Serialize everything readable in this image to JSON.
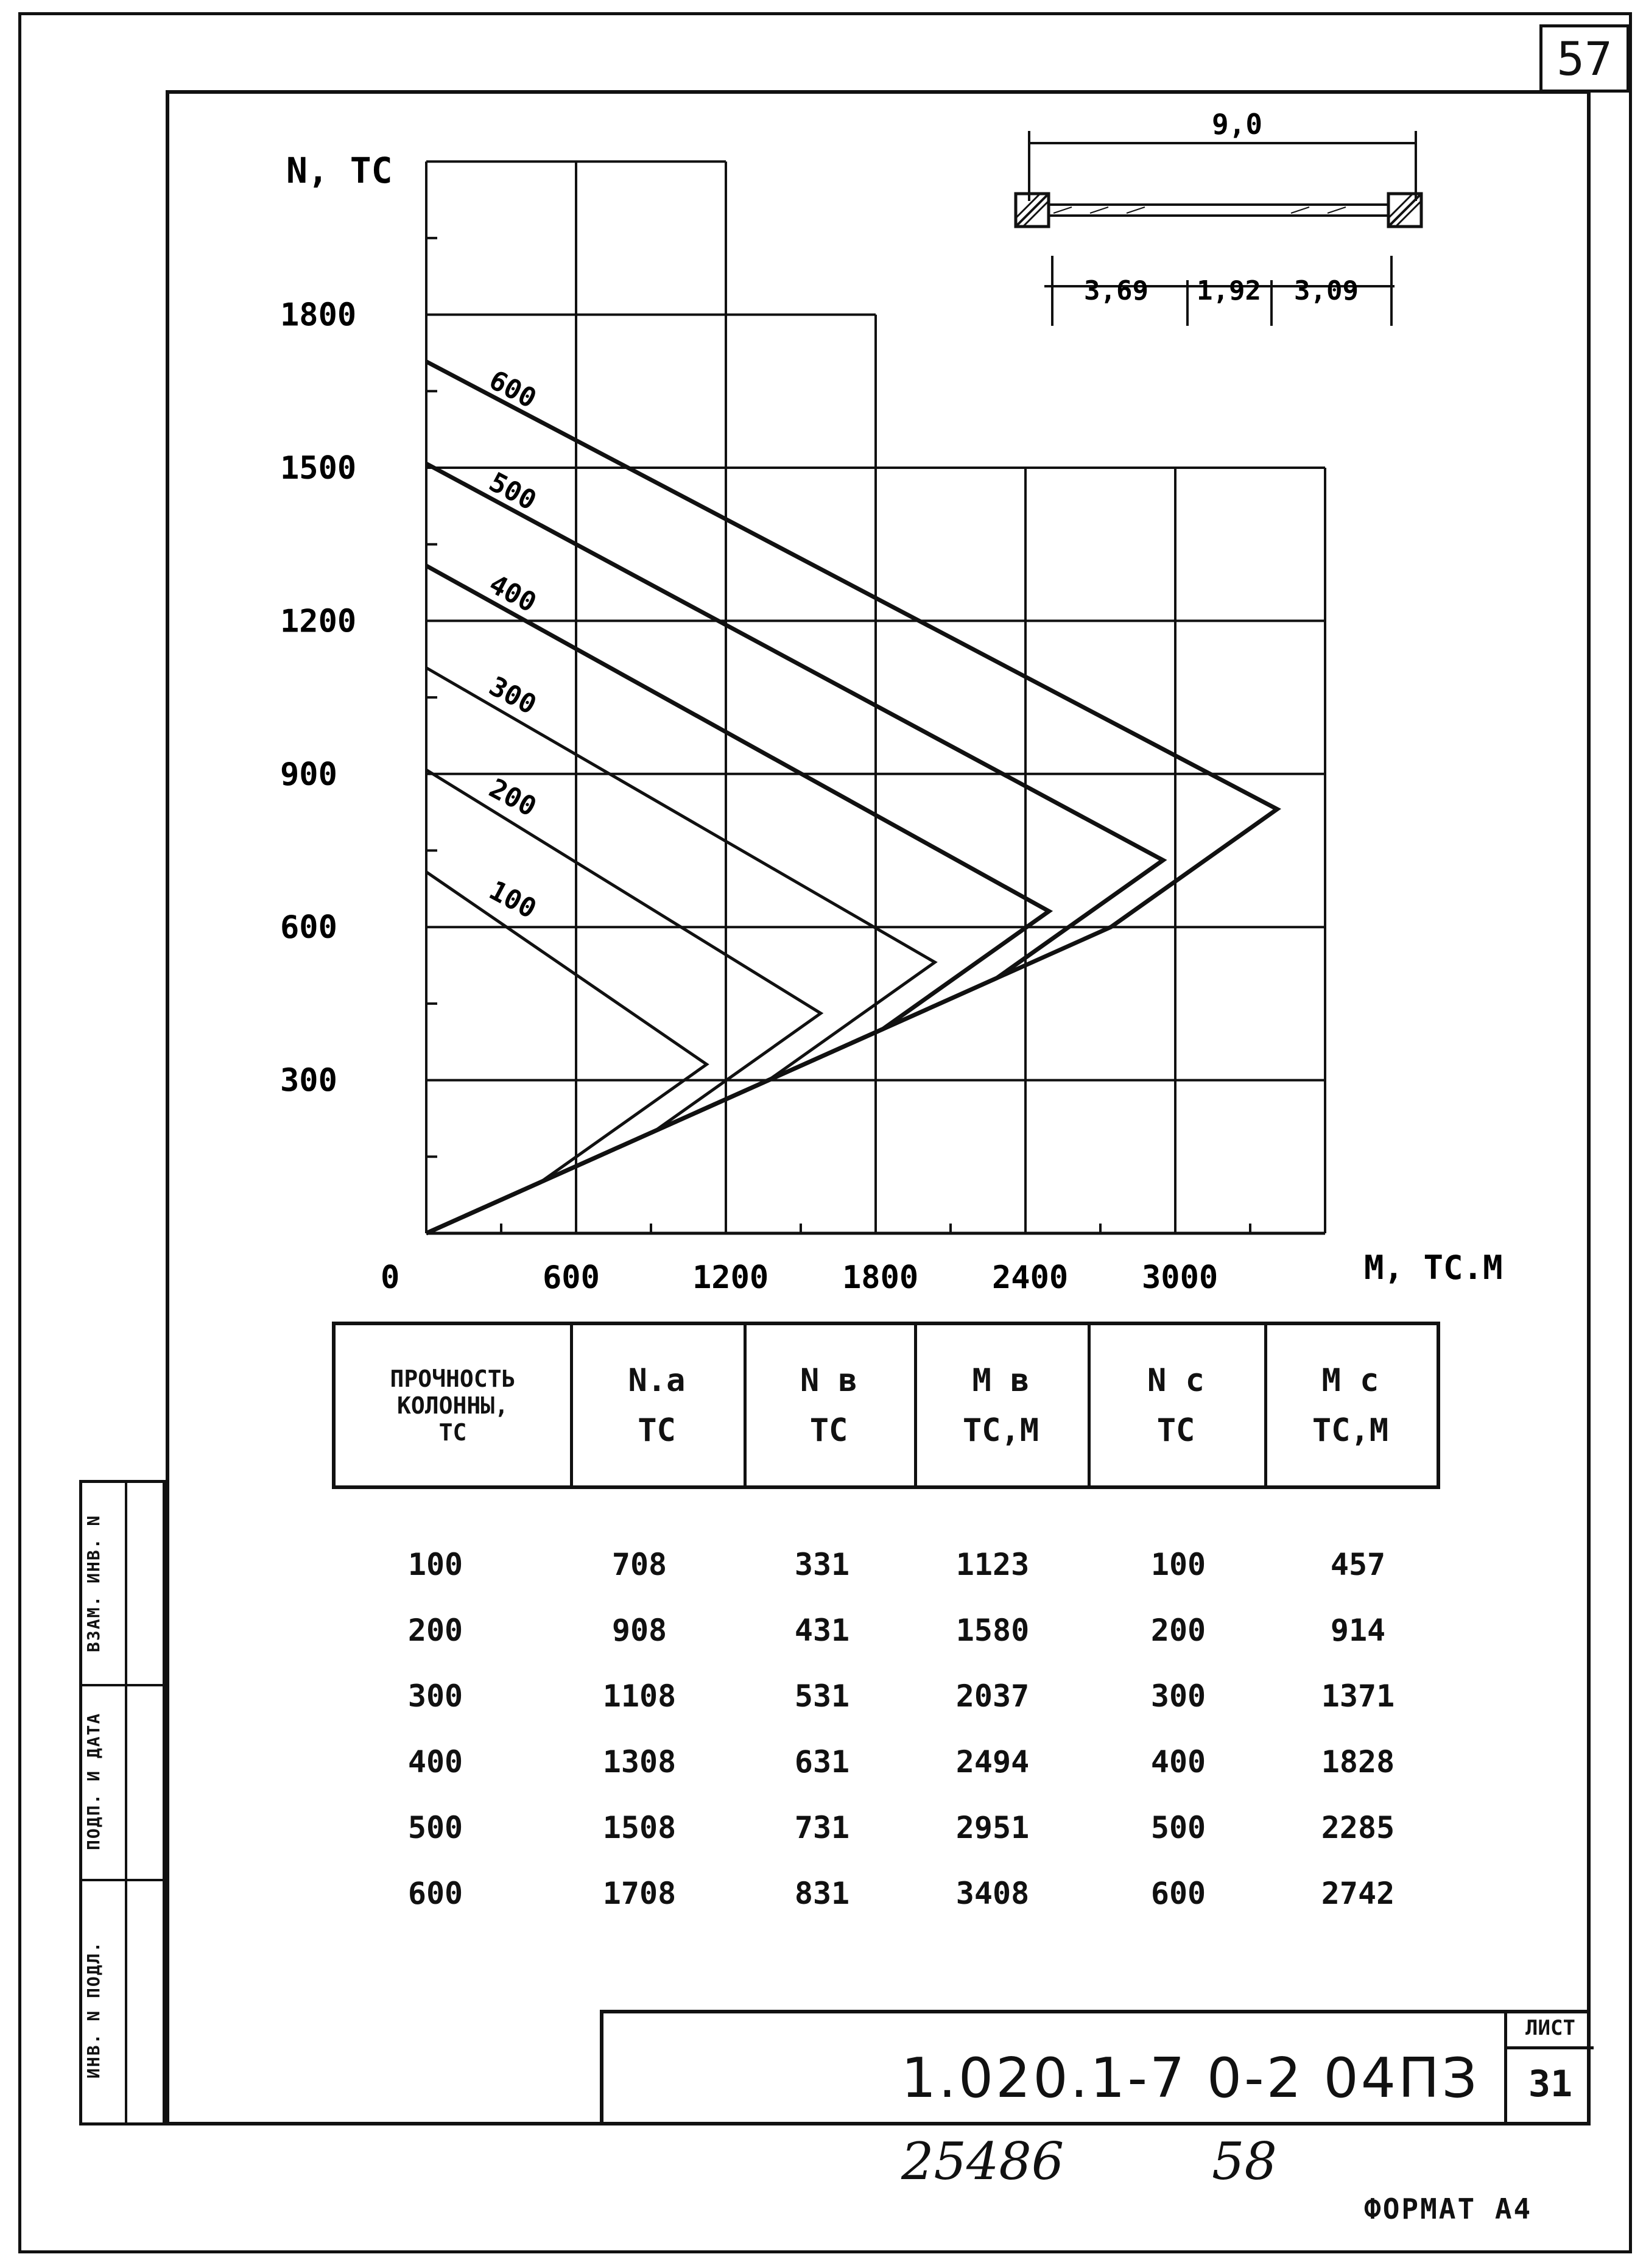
{
  "sheet_corner_number": "57",
  "chart_data": {
    "type": "line",
    "ylabel": "N, ТС",
    "xlabel": "М, ТС.М",
    "x_ticks": [
      "0",
      "600",
      "1200",
      "1800",
      "2400",
      "3000"
    ],
    "y_ticks": [
      "300",
      "600",
      "900",
      "1200",
      "1500",
      "1800"
    ],
    "xlim": [
      0,
      3600
    ],
    "ylim": [
      0,
      2100
    ],
    "series": [
      {
        "name": "100",
        "points": [
          [
            0,
            0
          ],
          [
            457,
            100
          ],
          [
            1123,
            331
          ],
          [
            0,
            708
          ]
        ]
      },
      {
        "name": "200",
        "points": [
          [
            0,
            0
          ],
          [
            914,
            200
          ],
          [
            1580,
            431
          ],
          [
            0,
            908
          ]
        ]
      },
      {
        "name": "300",
        "points": [
          [
            0,
            0
          ],
          [
            1371,
            300
          ],
          [
            2037,
            531
          ],
          [
            0,
            1108
          ]
        ]
      },
      {
        "name": "400",
        "points": [
          [
            0,
            0
          ],
          [
            1828,
            400
          ],
          [
            2494,
            631
          ],
          [
            0,
            1308
          ]
        ]
      },
      {
        "name": "500",
        "points": [
          [
            0,
            0
          ],
          [
            2285,
            500
          ],
          [
            2951,
            731
          ],
          [
            0,
            1508
          ]
        ]
      },
      {
        "name": "600",
        "points": [
          [
            0,
            0
          ],
          [
            2742,
            600
          ],
          [
            3408,
            831
          ],
          [
            0,
            1708
          ]
        ]
      }
    ]
  },
  "section_diagram": {
    "total": "9,0",
    "segments": [
      "3,69",
      "1,92",
      "3,09"
    ]
  },
  "table": {
    "headers": [
      [
        "ПРОЧНОСТЬ",
        "КОЛОННЫ,",
        "ТС"
      ],
      [
        "N.a",
        "ТС"
      ],
      [
        "N в",
        "ТС"
      ],
      [
        "М в",
        "ТС,М"
      ],
      [
        "N с",
        "ТС"
      ],
      [
        "М с",
        "ТС,М"
      ]
    ],
    "rows": [
      [
        "100",
        "708",
        "331",
        "1123",
        "100",
        "457"
      ],
      [
        "200",
        "908",
        "431",
        "1580",
        "200",
        "914"
      ],
      [
        "300",
        "1108",
        "531",
        "2037",
        "300",
        "1371"
      ],
      [
        "400",
        "1308",
        "631",
        "2494",
        "400",
        "1828"
      ],
      [
        "500",
        "1508",
        "731",
        "2951",
        "500",
        "2285"
      ],
      [
        "600",
        "1708",
        "831",
        "3408",
        "600",
        "2742"
      ]
    ]
  },
  "side_strip": {
    "labels": [
      "ИНВ. N ПОДЛ.",
      "ПОДП. И ДАТА",
      "ВЗАМ. ИНВ. N"
    ]
  },
  "title_block": {
    "code": "1.020.1-7 0-2 04ПЗ",
    "list_label": "ЛИСТ",
    "list_number": "31"
  },
  "handwritten": {
    "left": "25486",
    "right": "58"
  },
  "format_label": "ФОРМАТ А4"
}
